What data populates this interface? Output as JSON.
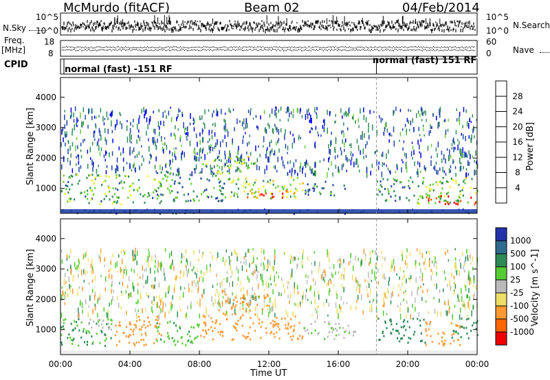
{
  "header": {
    "station": "McMurdo (fitACF)",
    "beam": "Beam 02",
    "date": "04/Feb/2014"
  },
  "noise_panel": {
    "left_label": "N.Sky",
    "right_label": "N.Search",
    "left_ticks": [
      "10^5",
      "10^0"
    ],
    "right_ticks": [
      "10^5",
      "10^0"
    ]
  },
  "freq_panel": {
    "left_label_line1": "Freq.",
    "left_label_line2": "[MHz]",
    "left_ticks": [
      "18",
      "8"
    ],
    "right_label": "Nave",
    "right_ticks": [
      "60",
      "0"
    ]
  },
  "cpid_panel": {
    "label": "CPID",
    "segments": [
      {
        "text": "normal (fast) -151 RF",
        "start_hour": 0
      },
      {
        "text": "normal (fast) 151 RF",
        "start_hour": 18.2
      }
    ]
  },
  "colors": {
    "power_scale": [
      "#0000ee",
      "#2244aa",
      "#2e8b57",
      "#66cc33",
      "#eeee22",
      "#ffaa00",
      "#ff5500",
      "#ee0000"
    ],
    "velocity_scale": [
      "#2233aa",
      "#2e6b8f",
      "#2e8b57",
      "#55cc33",
      "#bbbbbb",
      "#eedd66",
      "#ff9933",
      "#ff6600",
      "#ee0000"
    ]
  },
  "chart_data": [
    {
      "type": "heatmap",
      "title": "",
      "xlabel": "Time UT",
      "ylabel": "Slant Range [km]",
      "x_ticks": [
        "00:00",
        "04:00",
        "08:00",
        "12:00",
        "16:00",
        "20:00",
        "00:00"
      ],
      "y_ticks": [
        "1000",
        "2000",
        "3000",
        "4000"
      ],
      "ylim": [
        180,
        4650
      ],
      "xlim_hours": [
        0,
        24
      ],
      "colorbar_label": "Power [dB]",
      "colorbar_ticks": [
        "4",
        "8",
        "12",
        "16",
        "20",
        "24",
        "28"
      ],
      "color_range": [
        0,
        30
      ],
      "blobs": [
        {
          "t0": 0.0,
          "t1": 5.8,
          "r0": 500,
          "r1": 1500,
          "v": 12
        },
        {
          "t0": 5.5,
          "t1": 9.5,
          "r0": 600,
          "r1": 1600,
          "v": 10
        },
        {
          "t0": 8.0,
          "t1": 10.5,
          "r0": 1500,
          "r1": 2100,
          "v": 13
        },
        {
          "t0": 10.0,
          "t1": 11.2,
          "r0": 1600,
          "r1": 2100,
          "v": 16
        },
        {
          "t0": 9.5,
          "t1": 14.0,
          "r0": 700,
          "r1": 1400,
          "v": 14
        },
        {
          "t0": 10.5,
          "t1": 13.5,
          "r0": 700,
          "r1": 1000,
          "v": 24
        },
        {
          "t0": 14.0,
          "t1": 16.5,
          "r0": 800,
          "r1": 1300,
          "v": 8
        },
        {
          "t0": 18.2,
          "t1": 21.0,
          "r0": 600,
          "r1": 1400,
          "v": 9
        },
        {
          "t0": 20.5,
          "t1": 24.0,
          "r0": 500,
          "r1": 1400,
          "v": 14
        },
        {
          "t0": 21.0,
          "t1": 24.0,
          "r0": 500,
          "r1": 800,
          "v": 26
        },
        {
          "t0": 0.0,
          "t1": 24.0,
          "r0": 200,
          "r1": 340,
          "v": 6
        }
      ]
    },
    {
      "type": "heatmap",
      "title": "",
      "xlabel": "Time UT",
      "ylabel": "Slant Range [km]",
      "x_ticks": [
        "00:00",
        "04:00",
        "08:00",
        "12:00",
        "16:00",
        "20:00",
        "00:00"
      ],
      "y_ticks": [
        "1000",
        "2000",
        "3000",
        "4000"
      ],
      "ylim": [
        180,
        4650
      ],
      "xlim_hours": [
        0,
        24
      ],
      "colorbar_label": "Velocity [m s^-1]",
      "colorbar_ticks": [
        "1000",
        "500",
        "100",
        "25",
        "-25",
        "-100",
        "-500",
        "-1000"
      ],
      "blobs": [
        {
          "t0": 0.0,
          "t1": 3.0,
          "r0": 500,
          "r1": 1400,
          "v": 100
        },
        {
          "t0": 1.5,
          "t1": 3.0,
          "r0": 1000,
          "r1": 1400,
          "v": 0
        },
        {
          "t0": 3.0,
          "t1": 5.8,
          "r0": 500,
          "r1": 1500,
          "v": -200
        },
        {
          "t0": 5.5,
          "t1": 8.0,
          "r0": 500,
          "r1": 1300,
          "v": 80
        },
        {
          "t0": 8.0,
          "t1": 14.0,
          "r0": 700,
          "r1": 1500,
          "v": -300
        },
        {
          "t0": 9.0,
          "t1": 12.0,
          "r0": 1500,
          "r1": 2200,
          "v": -300
        },
        {
          "t0": 14.0,
          "t1": 17.0,
          "r0": 700,
          "r1": 1300,
          "v": 20
        },
        {
          "t0": 18.2,
          "t1": 21.0,
          "r0": 600,
          "r1": 1400,
          "v": 300
        },
        {
          "t0": 21.0,
          "t1": 23.0,
          "r0": 500,
          "r1": 1300,
          "v": -300
        },
        {
          "t0": 22.5,
          "t1": 24.0,
          "r0": 700,
          "r1": 1400,
          "v": 300
        }
      ]
    }
  ],
  "noise_data": {
    "sky_level": 0.62,
    "search_level": 0.55
  },
  "nave_data": {
    "level": 0.7
  }
}
